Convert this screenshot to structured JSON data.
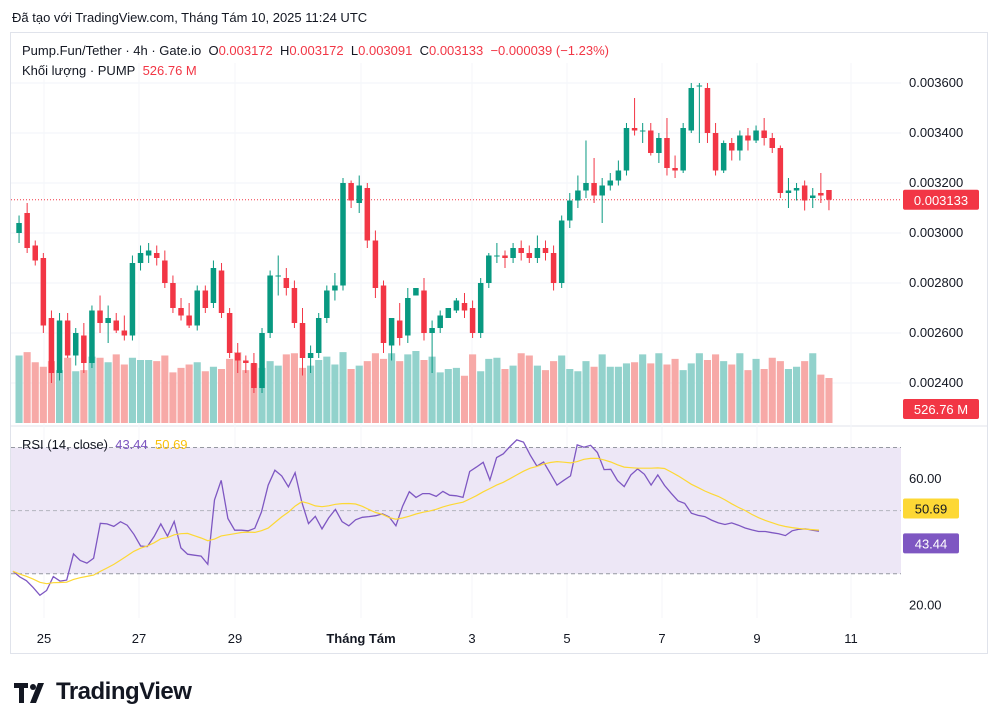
{
  "caption": "Đã tạo với TradingView.com, Tháng Tám 10, 2025 11:24 UTC",
  "legend": {
    "symbol": "Pump.Fun/Tether · 4h · Gate.io",
    "o_label": "O",
    "o_value": "0.003172",
    "h_label": "H",
    "h_value": "0.003172",
    "l_label": "L",
    "l_value": "0.003091",
    "c_label": "C",
    "c_value": "0.003133",
    "change": "−0.000039 (−1.23%)",
    "volume_label": "Khối lượng · PUMP",
    "volume_value": "526.76 M"
  },
  "rsi_legend": {
    "label": "RSI (14, close)",
    "rsi_value": "43.44",
    "ma_value": "50.69"
  },
  "brand": "TradingView",
  "colors": {
    "up": "#089981",
    "down": "#f23645",
    "up_vol": "#92d2cc",
    "down_vol": "#f7a9a7",
    "rsi": "#7e57c2",
    "rsi_ma": "#fdd835",
    "rsi_band": "#ede7f6"
  },
  "chart_data": [
    {
      "type": "candlestick",
      "y_ticks": [
        "0.002400",
        "0.002600",
        "0.002800",
        "0.003000",
        "0.003200",
        "0.003400",
        "0.003600"
      ],
      "ylim": [
        0.00224,
        0.00368
      ],
      "last_price_label": "0.003133",
      "last_price": 0.003133,
      "x_ticks": [
        "25",
        "27",
        "29",
        "Tháng Tám",
        "3",
        "5",
        "7",
        "9",
        "11"
      ],
      "candles": [
        [
          0.003,
          0.00307,
          0.00296,
          0.00304
        ],
        [
          0.00308,
          0.00312,
          0.00292,
          0.00294
        ],
        [
          0.00295,
          0.00297,
          0.00287,
          0.00289
        ],
        [
          0.0029,
          0.00292,
          0.0026,
          0.00263
        ],
        [
          0.00266,
          0.00269,
          0.0024,
          0.00244
        ],
        [
          0.00244,
          0.00268,
          0.00241,
          0.00265
        ],
        [
          0.00265,
          0.00268,
          0.0025,
          0.00251
        ],
        [
          0.00251,
          0.00262,
          0.00247,
          0.0026
        ],
        [
          0.00259,
          0.00264,
          0.00244,
          0.00248
        ],
        [
          0.00248,
          0.00271,
          0.00246,
          0.00269
        ],
        [
          0.00269,
          0.00275,
          0.0026,
          0.00264
        ],
        [
          0.00264,
          0.00271,
          0.00256,
          0.00266
        ],
        [
          0.00265,
          0.00268,
          0.0026,
          0.00261
        ],
        [
          0.00261,
          0.00267,
          0.00257,
          0.00259
        ],
        [
          0.00259,
          0.00291,
          0.00257,
          0.00288
        ],
        [
          0.00288,
          0.00295,
          0.00285,
          0.00292
        ],
        [
          0.00291,
          0.00296,
          0.00288,
          0.00293
        ],
        [
          0.00292,
          0.00295,
          0.00287,
          0.0029
        ],
        [
          0.00289,
          0.00293,
          0.00278,
          0.0028
        ],
        [
          0.0028,
          0.00283,
          0.00268,
          0.0027
        ],
        [
          0.0027,
          0.00274,
          0.00265,
          0.00267
        ],
        [
          0.00267,
          0.00272,
          0.00262,
          0.00263
        ],
        [
          0.00263,
          0.00279,
          0.00261,
          0.00277
        ],
        [
          0.00277,
          0.00279,
          0.00268,
          0.0027
        ],
        [
          0.00272,
          0.00289,
          0.0027,
          0.00286
        ],
        [
          0.00285,
          0.00288,
          0.00266,
          0.00268
        ],
        [
          0.00268,
          0.0027,
          0.0025,
          0.00252
        ],
        [
          0.00252,
          0.00256,
          0.00244,
          0.00249
        ],
        [
          0.00249,
          0.00251,
          0.00244,
          0.00248
        ],
        [
          0.00248,
          0.00252,
          0.00236,
          0.00238
        ],
        [
          0.00238,
          0.00262,
          0.00236,
          0.0026
        ],
        [
          0.0026,
          0.00285,
          0.00258,
          0.00283
        ],
        [
          0.00283,
          0.00291,
          0.00275,
          0.00283
        ],
        [
          0.00282,
          0.00286,
          0.00275,
          0.00278
        ],
        [
          0.00278,
          0.00281,
          0.00262,
          0.00264
        ],
        [
          0.00264,
          0.0027,
          0.00243,
          0.0025
        ],
        [
          0.0025,
          0.00255,
          0.00244,
          0.00252
        ],
        [
          0.00252,
          0.00268,
          0.0025,
          0.00266
        ],
        [
          0.00266,
          0.00279,
          0.00264,
          0.00277
        ],
        [
          0.00277,
          0.00284,
          0.00273,
          0.00279
        ],
        [
          0.00279,
          0.00322,
          0.00277,
          0.0032
        ],
        [
          0.0032,
          0.00321,
          0.0031,
          0.00313
        ],
        [
          0.00312,
          0.00323,
          0.00308,
          0.00319
        ],
        [
          0.00318,
          0.0032,
          0.00294,
          0.00297
        ],
        [
          0.00297,
          0.00301,
          0.00274,
          0.00278
        ],
        [
          0.00279,
          0.00281,
          0.00252,
          0.00256
        ],
        [
          0.00255,
          0.00266,
          0.00249,
          0.00266
        ],
        [
          0.00265,
          0.00272,
          0.00255,
          0.00258
        ],
        [
          0.00259,
          0.00278,
          0.00256,
          0.00274
        ],
        [
          0.00275,
          0.00278,
          0.00276,
          0.00278
        ],
        [
          0.00277,
          0.00282,
          0.00257,
          0.0026
        ],
        [
          0.0026,
          0.00265,
          0.00244,
          0.00262
        ],
        [
          0.00262,
          0.00269,
          0.0026,
          0.00267
        ],
        [
          0.00266,
          0.0027,
          0.00266,
          0.0027
        ],
        [
          0.00269,
          0.00274,
          0.00268,
          0.00273
        ],
        [
          0.00272,
          0.00276,
          0.00266,
          0.00269
        ],
        [
          0.0027,
          0.00273,
          0.00258,
          0.0026
        ],
        [
          0.0026,
          0.00282,
          0.00258,
          0.0028
        ],
        [
          0.0028,
          0.00292,
          0.00278,
          0.00291
        ],
        [
          0.00291,
          0.00296,
          0.00288,
          0.00291
        ],
        [
          0.00291,
          0.00293,
          0.00286,
          0.0029
        ],
        [
          0.0029,
          0.00296,
          0.00288,
          0.00294
        ],
        [
          0.00294,
          0.00297,
          0.00289,
          0.00292
        ],
        [
          0.00292,
          0.00295,
          0.00288,
          0.0029
        ],
        [
          0.0029,
          0.00299,
          0.00288,
          0.00294
        ],
        [
          0.00294,
          0.00297,
          0.00289,
          0.00292
        ],
        [
          0.00292,
          0.00295,
          0.00277,
          0.0028
        ],
        [
          0.0028,
          0.00307,
          0.00278,
          0.00305
        ],
        [
          0.00305,
          0.00316,
          0.00302,
          0.00313
        ],
        [
          0.00313,
          0.00323,
          0.0031,
          0.00317
        ],
        [
          0.00317,
          0.00337,
          0.00314,
          0.0032
        ],
        [
          0.0032,
          0.0033,
          0.00312,
          0.00315
        ],
        [
          0.00315,
          0.00322,
          0.00304,
          0.00319
        ],
        [
          0.00319,
          0.00324,
          0.00317,
          0.00321
        ],
        [
          0.00321,
          0.00329,
          0.00319,
          0.00325
        ],
        [
          0.00325,
          0.00344,
          0.00323,
          0.00342
        ],
        [
          0.00342,
          0.00354,
          0.00339,
          0.00341
        ],
        [
          0.00341,
          0.00344,
          0.00336,
          0.00341
        ],
        [
          0.00341,
          0.00344,
          0.00331,
          0.00332
        ],
        [
          0.00332,
          0.0034,
          0.00328,
          0.00338
        ],
        [
          0.00338,
          0.00346,
          0.00323,
          0.00326
        ],
        [
          0.00326,
          0.00331,
          0.00322,
          0.00325
        ],
        [
          0.00325,
          0.00344,
          0.00324,
          0.00342
        ],
        [
          0.00341,
          0.0036,
          0.0034,
          0.00358
        ],
        [
          0.00359,
          0.0036,
          0.00336,
          0.00359
        ],
        [
          0.00358,
          0.0036,
          0.00336,
          0.0034
        ],
        [
          0.0034,
          0.00344,
          0.00323,
          0.00325
        ],
        [
          0.00325,
          0.00337,
          0.00324,
          0.00336
        ],
        [
          0.00336,
          0.00338,
          0.00329,
          0.00333
        ],
        [
          0.00333,
          0.00341,
          0.00329,
          0.00339
        ],
        [
          0.00339,
          0.00342,
          0.00333,
          0.00337
        ],
        [
          0.00337,
          0.00343,
          0.00336,
          0.00341
        ],
        [
          0.00341,
          0.00346,
          0.00335,
          0.00338
        ],
        [
          0.00338,
          0.0034,
          0.00332,
          0.00334
        ],
        [
          0.00334,
          0.00335,
          0.00314,
          0.00316
        ],
        [
          0.00316,
          0.00322,
          0.0031,
          0.00317
        ],
        [
          0.00317,
          0.0032,
          0.00313,
          0.00318
        ],
        [
          0.00319,
          0.00321,
          0.00309,
          0.00313
        ],
        [
          0.00314,
          0.00318,
          0.0031,
          0.00315
        ],
        [
          0.00316,
          0.00324,
          0.00312,
          0.00315
        ],
        [
          0.003172,
          0.003172,
          0.003091,
          0.003133
        ]
      ],
      "volume": [
        60,
        63,
        54,
        50,
        55,
        47,
        58,
        46,
        47,
        59,
        58,
        54,
        61,
        52,
        58,
        56,
        56,
        55,
        60,
        45,
        49,
        52,
        54,
        46,
        50,
        48,
        57,
        63,
        47,
        53,
        49,
        55,
        51,
        61,
        62,
        49,
        51,
        56,
        59,
        52,
        63,
        48,
        51,
        55,
        62,
        57,
        62,
        55,
        61,
        64,
        56,
        59,
        45,
        48,
        49,
        42,
        61,
        46,
        57,
        58,
        48,
        51,
        62,
        60,
        51,
        47,
        55,
        60,
        48,
        46,
        55,
        50,
        61,
        50,
        50,
        53,
        54,
        61,
        53,
        62,
        52,
        57,
        47,
        53,
        62,
        56,
        61,
        55,
        52,
        62,
        47,
        57,
        48,
        58,
        55,
        48,
        50,
        55,
        62,
        43,
        40
      ],
      "volume_last_label": "526.76 M"
    },
    {
      "type": "line",
      "name": "RSI (14, close)",
      "y_ticks": [
        "20.00",
        "40.00",
        "60.00"
      ],
      "ylim": [
        16,
        73
      ],
      "band": [
        30,
        70
      ],
      "midline": 50,
      "rsi": [
        30.8,
        29.0,
        27.8,
        25.7,
        23.2,
        24.7,
        29.1,
        27.7,
        28.0,
        36.3,
        34.2,
        33.4,
        34.9,
        46.0,
        45.8,
        45.0,
        46.5,
        45.4,
        42.5,
        38.8,
        38.6,
        41.8,
        45.8,
        41.9,
        46.6,
        38.2,
        36.2,
        35.9,
        35.6,
        33.0,
        53.4,
        59.6,
        47.5,
        43.8,
        43.8,
        43.6,
        44.4,
        49.6,
        58.1,
        62.8,
        61.0,
        57.5,
        62.0,
        52.7,
        45.9,
        48.2,
        44.2,
        47.7,
        50.4,
        46.5,
        45.2,
        47.1,
        47.9,
        48.1,
        48.4,
        49.0,
        48.0,
        45.2,
        51.4,
        56.0,
        54.2,
        55.4,
        55.4,
        54.5,
        56.1,
        54.9,
        54.7,
        54.2,
        62.4,
        63.8,
        65.3,
        59.7,
        66.8,
        68.0,
        70.3,
        72.4,
        71.7,
        67.6,
        64.1,
        65.4,
        61.8,
        58.1,
        59.6,
        61.0,
        70.8,
        70.1,
        70.7,
        68.4,
        63.0,
        63.1,
        59.5,
        57.6,
        61.3,
        63.2,
        61.5,
        58.1,
        61.3,
        58.0,
        55.5,
        53.1,
        52.3,
        49.2,
        48.5,
        48.1,
        47.0,
        46.1,
        45.6,
        46.1,
        45.4,
        44.5,
        43.9,
        43.4,
        43.4,
        43.0,
        42.7,
        42.1,
        43.6,
        44.1,
        44.2,
        43.8,
        43.5
      ],
      "rsi_last_label": "43.44",
      "ma_last_label": "50.69"
    }
  ]
}
